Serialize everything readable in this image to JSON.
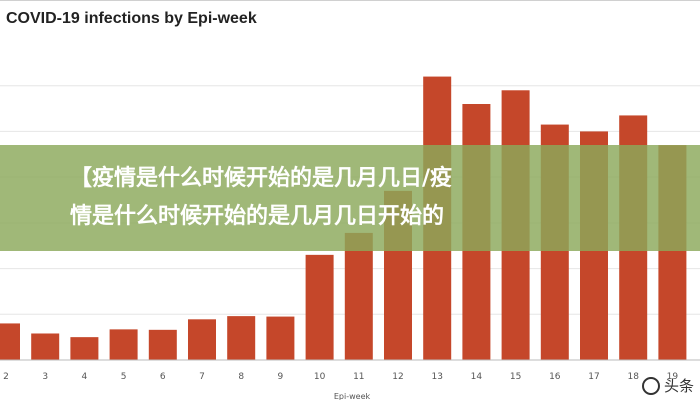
{
  "chart_data": {
    "type": "bar",
    "title": "COVID-19 infections by Epi-week",
    "xlabel": "Epi-week",
    "ylabel": "",
    "categories": [
      "2",
      "3",
      "4",
      "5",
      "6",
      "7",
      "8",
      "9",
      "10",
      "11",
      "12",
      "13",
      "14",
      "15",
      "16",
      "17",
      "18",
      "19"
    ],
    "values": [
      80,
      58,
      50,
      67,
      66,
      89,
      96,
      95,
      230,
      278,
      370,
      620,
      560,
      590,
      515,
      500,
      535,
      470
    ],
    "ylim": [
      0,
      700
    ],
    "grid": true,
    "legend": "none",
    "bar_color": "#c5472a"
  },
  "banner": {
    "line1": "【疫情是什么时候开始的是几月几日/疫",
    "line2": "情是什么时候开始的是几月几日开始的"
  },
  "watermark": {
    "text": "头条"
  }
}
